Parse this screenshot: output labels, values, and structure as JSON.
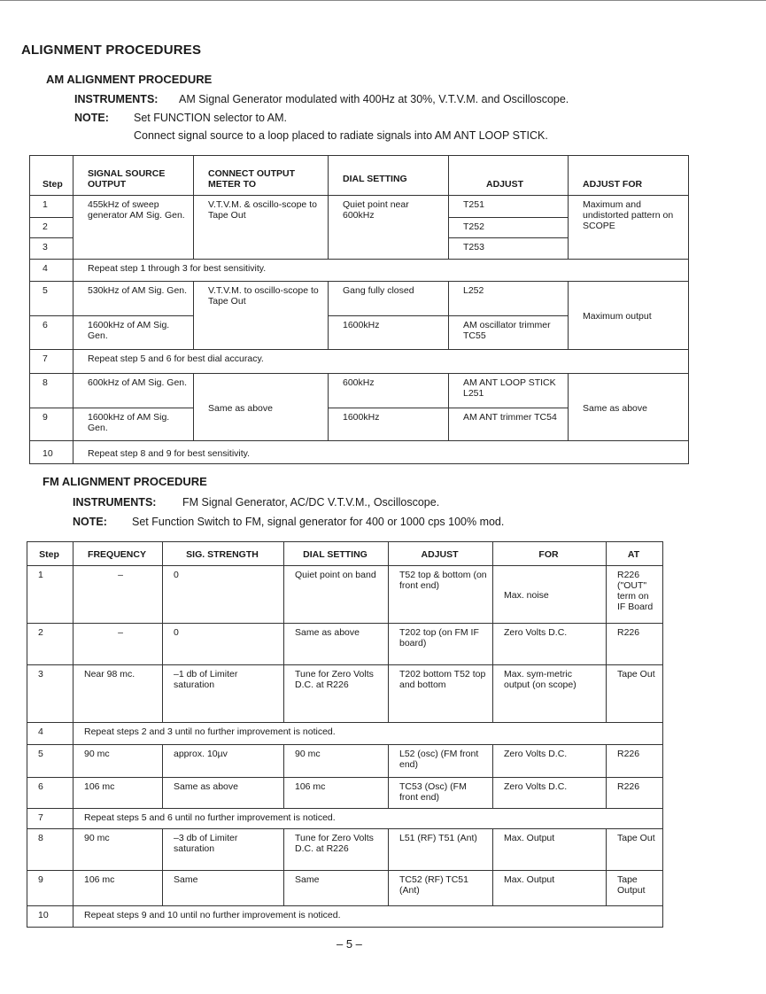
{
  "title": "ALIGNMENT PROCEDURES",
  "am": {
    "heading": "AM ALIGNMENT PROCEDURE",
    "instruments_label": "INSTRUMENTS:",
    "instruments": "AM Signal Generator modulated with 400Hz at 30%, V.T.V.M. and Oscilloscope.",
    "note_label": "NOTE:",
    "note_lines": [
      "Set FUNCTION selector to AM.",
      "Connect signal source to a loop placed to radiate signals into AM ANT LOOP STICK."
    ],
    "headers": [
      "Step",
      "SIGNAL SOURCE OUTPUT",
      "CONNECT OUTPUT METER TO",
      "DIAL SETTING",
      "ADJUST",
      "ADJUST FOR"
    ],
    "rows": {
      "r1": {
        "step": "1",
        "source": "455kHz of sweep generator AM Sig. Gen.",
        "connect": "V.T.V.M. & oscillo-scope to Tape Out",
        "dial": "Quiet point near 600kHz",
        "adjust": "T251",
        "for": "Maximum and undistorted pattern on SCOPE"
      },
      "r2": {
        "step": "2",
        "adjust": "T252"
      },
      "r3": {
        "step": "3",
        "adjust": "T253"
      },
      "r4": {
        "step": "4",
        "text": "Repeat step 1 through 3 for best sensitivity."
      },
      "r5": {
        "step": "5",
        "source": "530kHz of AM Sig. Gen.",
        "connect": "V.T.V.M. to oscillo-scope to Tape Out",
        "dial": "Gang fully closed",
        "adjust": "L252",
        "for": "Maximum output"
      },
      "r6": {
        "step": "6",
        "source": "1600kHz of AM Sig. Gen.",
        "dial": "1600kHz",
        "adjust": "AM oscillator trimmer TC55"
      },
      "r7": {
        "step": "7",
        "text": "Repeat step 5 and 6 for best dial accuracy."
      },
      "r8": {
        "step": "8",
        "source": "600kHz of AM Sig. Gen.",
        "connect": "Same as above",
        "dial": "600kHz",
        "adjust": "AM ANT LOOP STICK L251",
        "for": "Same as above"
      },
      "r9": {
        "step": "9",
        "source": "1600kHz of AM Sig. Gen.",
        "dial": "1600kHz",
        "adjust": "AM ANT trimmer TC54"
      },
      "r10": {
        "step": "10",
        "text": "Repeat step 8 and 9 for best sensitivity."
      }
    }
  },
  "fm": {
    "heading": "FM ALIGNMENT PROCEDURE",
    "instruments_label": "INSTRUMENTS:",
    "instruments": "FM Signal Generator, AC/DC V.T.V.M., Oscilloscope.",
    "note_label": "NOTE:",
    "note": "Set Function Switch to FM, signal generator for 400 or 1000 cps 100% mod.",
    "headers": [
      "Step",
      "FREQUENCY",
      "SIG. STRENGTH",
      "DIAL SETTING",
      "ADJUST",
      "FOR",
      "AT"
    ],
    "rows": [
      {
        "step": "1",
        "freq": "–",
        "sig": "0",
        "dial": "Quiet point on band",
        "adjust": "T52 top & bottom (on front end)",
        "for": "Max. noise",
        "at": "R226 (\"OUT\" term on IF Board"
      },
      {
        "step": "2",
        "freq": "–",
        "sig": "0",
        "dial": "Same as above",
        "adjust": "T202 top (on FM IF board)",
        "for": "Zero Volts D.C.",
        "at": "R226"
      },
      {
        "step": "3",
        "freq": "Near 98 mc.",
        "sig": "–1 db of Limiter saturation",
        "dial": "Tune for Zero Volts D.C. at R226",
        "adjust": "T202 bottom T52 top and bottom",
        "for": "Max. sym-metric output (on scope)",
        "at": "Tape Out"
      },
      {
        "step": "4",
        "text": "Repeat steps 2 and 3 until no further improvement is noticed."
      },
      {
        "step": "5",
        "freq": "90 mc",
        "sig": "approx. 10µv",
        "dial": "90 mc",
        "adjust": "L52 (osc) (FM front end)",
        "for": "Zero Volts D.C.",
        "at": "R226"
      },
      {
        "step": "6",
        "freq": "106 mc",
        "sig": "Same as above",
        "dial": "106 mc",
        "adjust": "TC53 (Osc) (FM front end)",
        "for": "Zero Volts D.C.",
        "at": "R226"
      },
      {
        "step": "7",
        "text": "Repeat steps 5 and 6 until no further improvement is noticed."
      },
      {
        "step": "8",
        "freq": "90 mc",
        "sig": "–3 db of Limiter saturation",
        "dial": "Tune for Zero Volts D.C. at R226",
        "adjust": "L51 (RF) T51 (Ant)",
        "for": "Max. Output",
        "at": "Tape Out"
      },
      {
        "step": "9",
        "freq": "106 mc",
        "sig": "Same",
        "dial": "Same",
        "adjust": "TC52 (RF) TC51 (Ant)",
        "for": "Max. Output",
        "at": "Tape Output"
      },
      {
        "step": "10",
        "text": "Repeat steps 9 and 10 until no further improvement is noticed."
      }
    ]
  },
  "page_number": "– 5 –"
}
